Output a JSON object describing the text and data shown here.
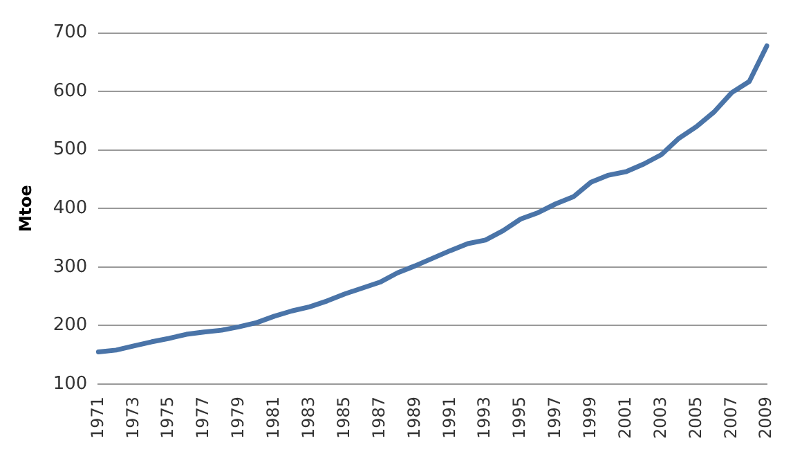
{
  "chart_data": {
    "type": "line",
    "ylabel": "Mtoe",
    "categories": [
      "1971",
      null,
      "1973",
      null,
      "1975",
      null,
      "1977",
      null,
      "1979",
      null,
      "1981",
      null,
      "1983",
      null,
      "1985",
      null,
      "1987",
      null,
      "1989",
      null,
      "1991",
      null,
      "1993",
      null,
      "1995",
      null,
      "1997",
      null,
      "1999",
      null,
      "2001",
      null,
      "2003",
      null,
      "2005",
      null,
      "2007",
      null,
      "2009"
    ],
    "series": [
      {
        "color": "#4a74a8",
        "values": [
          155,
          158,
          165,
          172,
          178,
          185,
          189,
          192,
          198,
          205,
          216,
          225,
          232,
          242,
          254,
          264,
          274,
          290,
          302,
          315,
          328,
          340,
          346,
          362,
          382,
          393,
          408,
          420,
          445,
          457,
          463,
          476,
          492,
          520,
          540,
          565,
          598,
          617,
          678
        ]
      }
    ],
    "ylim": [
      100,
      700
    ],
    "yticks": [
      100,
      200,
      300,
      400,
      500,
      600,
      700
    ],
    "grid": "y",
    "legend": false,
    "marker": "none",
    "line_style": "solid"
  }
}
